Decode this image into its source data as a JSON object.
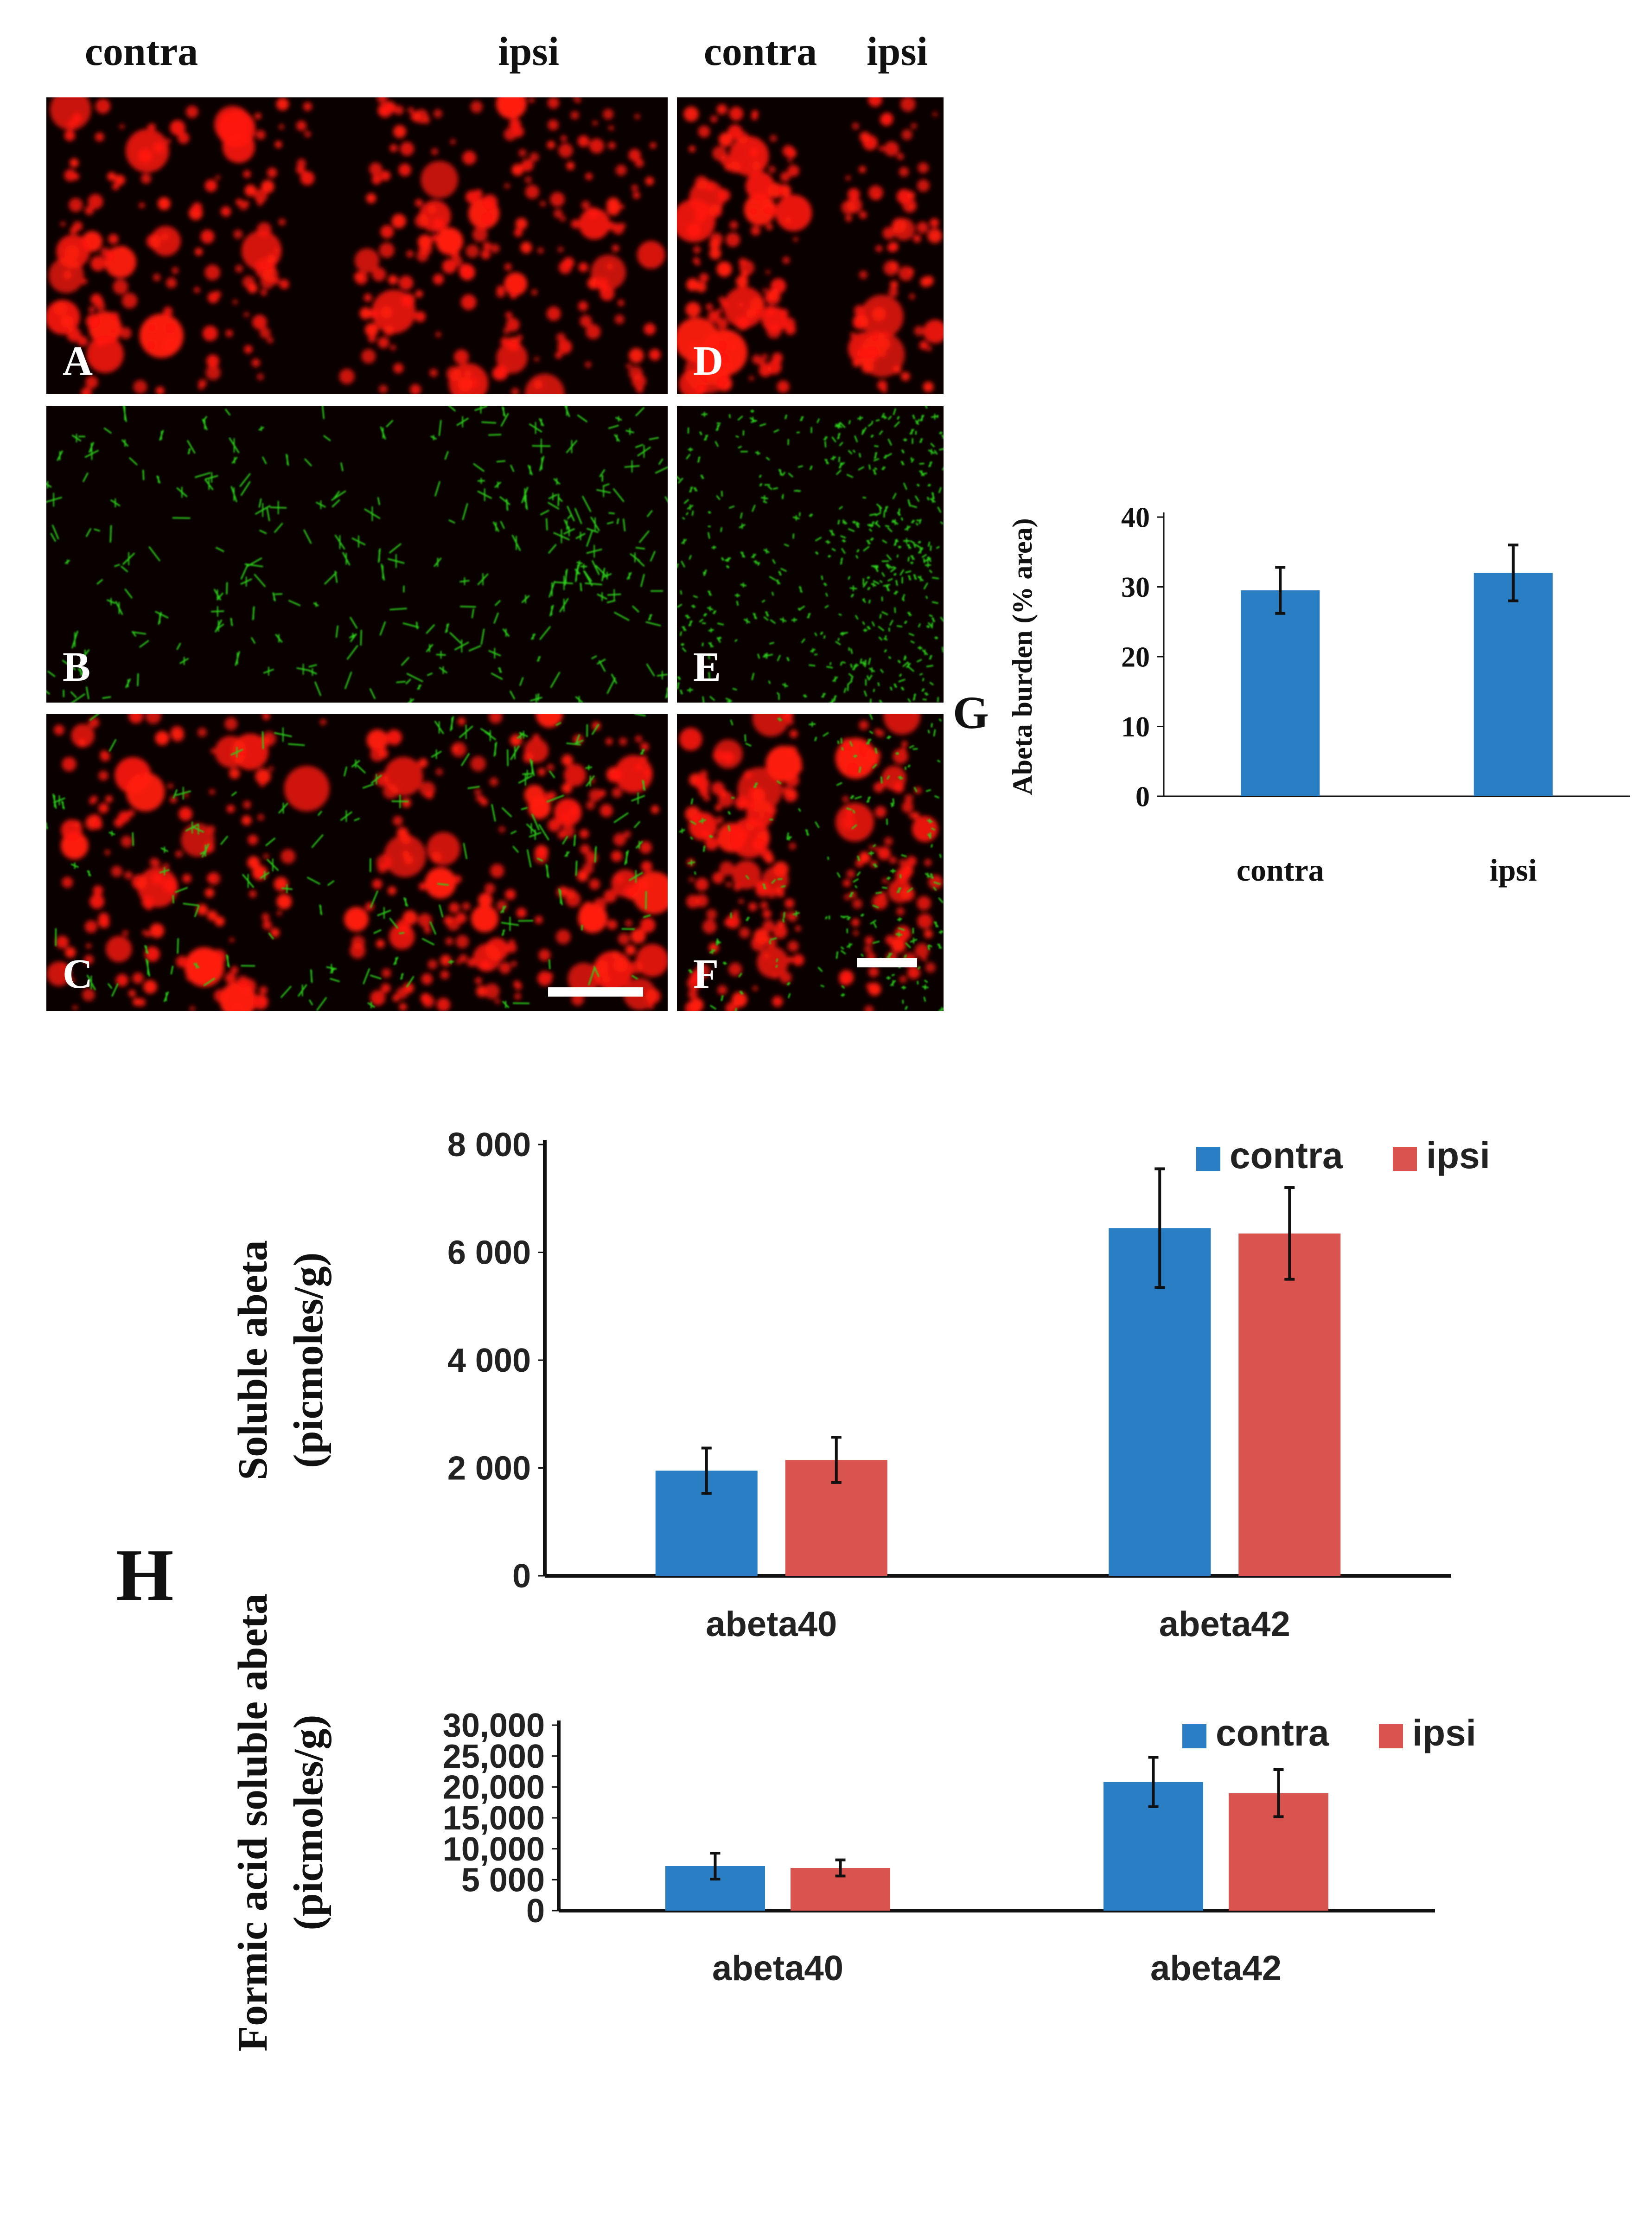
{
  "colors": {
    "red_stain": "#ff1a0f",
    "green_stain": "#2bd21e",
    "background_dark": "#0a0000",
    "contra": "#2a7fc4",
    "ipsi": "#d9534f",
    "axis": "#111111"
  },
  "micrographs": {
    "left_headers": {
      "contra": "contra",
      "ipsi": "ipsi"
    },
    "right_headers": {
      "contra": "contra",
      "ipsi": "ipsi"
    },
    "panels": [
      {
        "letter": "A",
        "stain": "red"
      },
      {
        "letter": "B",
        "stain": "green"
      },
      {
        "letter": "C",
        "stain": "merge"
      },
      {
        "letter": "D",
        "stain": "red"
      },
      {
        "letter": "E",
        "stain": "green"
      },
      {
        "letter": "F",
        "stain": "merge"
      }
    ]
  },
  "chart_data": [
    {
      "panel": "G",
      "type": "bar",
      "categories": [
        "contra",
        "ipsi"
      ],
      "series": [
        {
          "values": [
            29.5,
            32.0
          ],
          "errors": [
            3.3,
            4.0
          ]
        }
      ],
      "ylabel": "Abeta burden (% area)",
      "ylim": [
        0,
        40
      ],
      "yticks": [
        "0",
        "10",
        "20",
        "30",
        "40"
      ],
      "grid": false
    },
    {
      "panel": "H",
      "type": "bar",
      "categories": [
        "abeta40",
        "abeta42"
      ],
      "series": [
        {
          "name": "contra",
          "values": [
            1950,
            6450
          ],
          "errors": [
            420,
            1100
          ]
        },
        {
          "name": "ipsi",
          "values": [
            2150,
            6350
          ],
          "errors": [
            420,
            850
          ]
        }
      ],
      "ylabel": [
        "Soluble abeta",
        "(picmoles/g)"
      ],
      "ylim": [
        0,
        8000
      ],
      "yticks": [
        "0",
        "2 000",
        "4 000",
        "6 000",
        "8 000"
      ],
      "legend": "top-right",
      "grid": false
    },
    {
      "panel": "H",
      "type": "bar",
      "categories": [
        "abeta40",
        "abeta42"
      ],
      "series": [
        {
          "name": "contra",
          "values": [
            7200,
            20800
          ],
          "errors": [
            2100,
            4000
          ]
        },
        {
          "name": "ipsi",
          "values": [
            6900,
            19000
          ],
          "errors": [
            1300,
            3800
          ]
        }
      ],
      "ylabel": [
        "Formic acid soluble abeta",
        "(picmoles/g)"
      ],
      "ylim": [
        0,
        30000
      ],
      "yticks": [
        "0",
        "5 000",
        "10,000",
        "15,000",
        "20,000",
        "25,000",
        "30,000"
      ],
      "legend": "top-right",
      "grid": false
    }
  ]
}
